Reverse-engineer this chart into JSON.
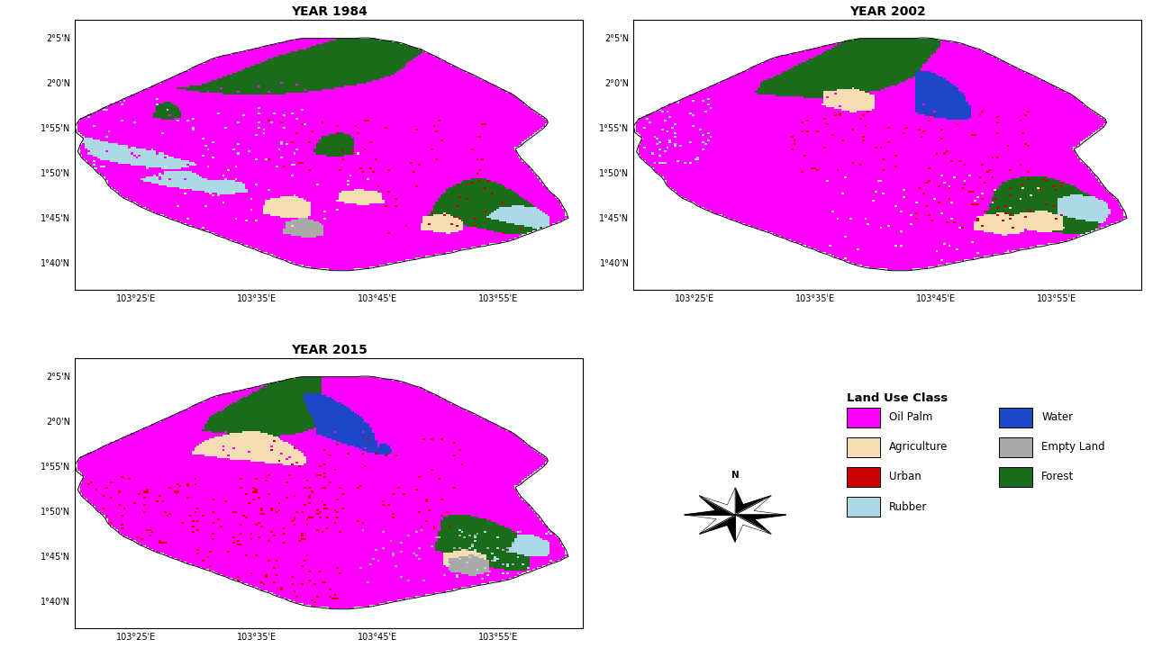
{
  "years": [
    "YEAR 1984",
    "YEAR 2002",
    "YEAR 2015"
  ],
  "lon_min": 103.333,
  "lon_max": 104.033,
  "lat_min": 1.617,
  "lat_max": 2.117,
  "lon_ticks": [
    103.4167,
    103.5833,
    103.75,
    103.9167
  ],
  "lon_labels": [
    "103°25'E",
    "103°35'E",
    "103°45'E",
    "103°55'E"
  ],
  "lat_ticks": [
    1.667,
    1.75,
    1.833,
    1.917,
    2.0,
    2.083
  ],
  "lat_labels": [
    "1°40'N",
    "1°45'N",
    "1°50'N",
    "1°55'N",
    "2°0'N",
    "2°5'N"
  ],
  "colors": {
    "Oil Palm": "#FF00FF",
    "Water": "#1E47C8",
    "Agriculture": "#F5DEB3",
    "Empty Land": "#A9A9A9",
    "Urban": "#CC0000",
    "Forest": "#1A6B1A",
    "Rubber": "#ADD8E6",
    "Outside": "#FFFFFF"
  },
  "title_fontsize": 10,
  "tick_fontsize": 7,
  "legend_title": "Land Use Class",
  "legend_fontsize": 8.5,
  "legend_title_fontsize": 9.5
}
